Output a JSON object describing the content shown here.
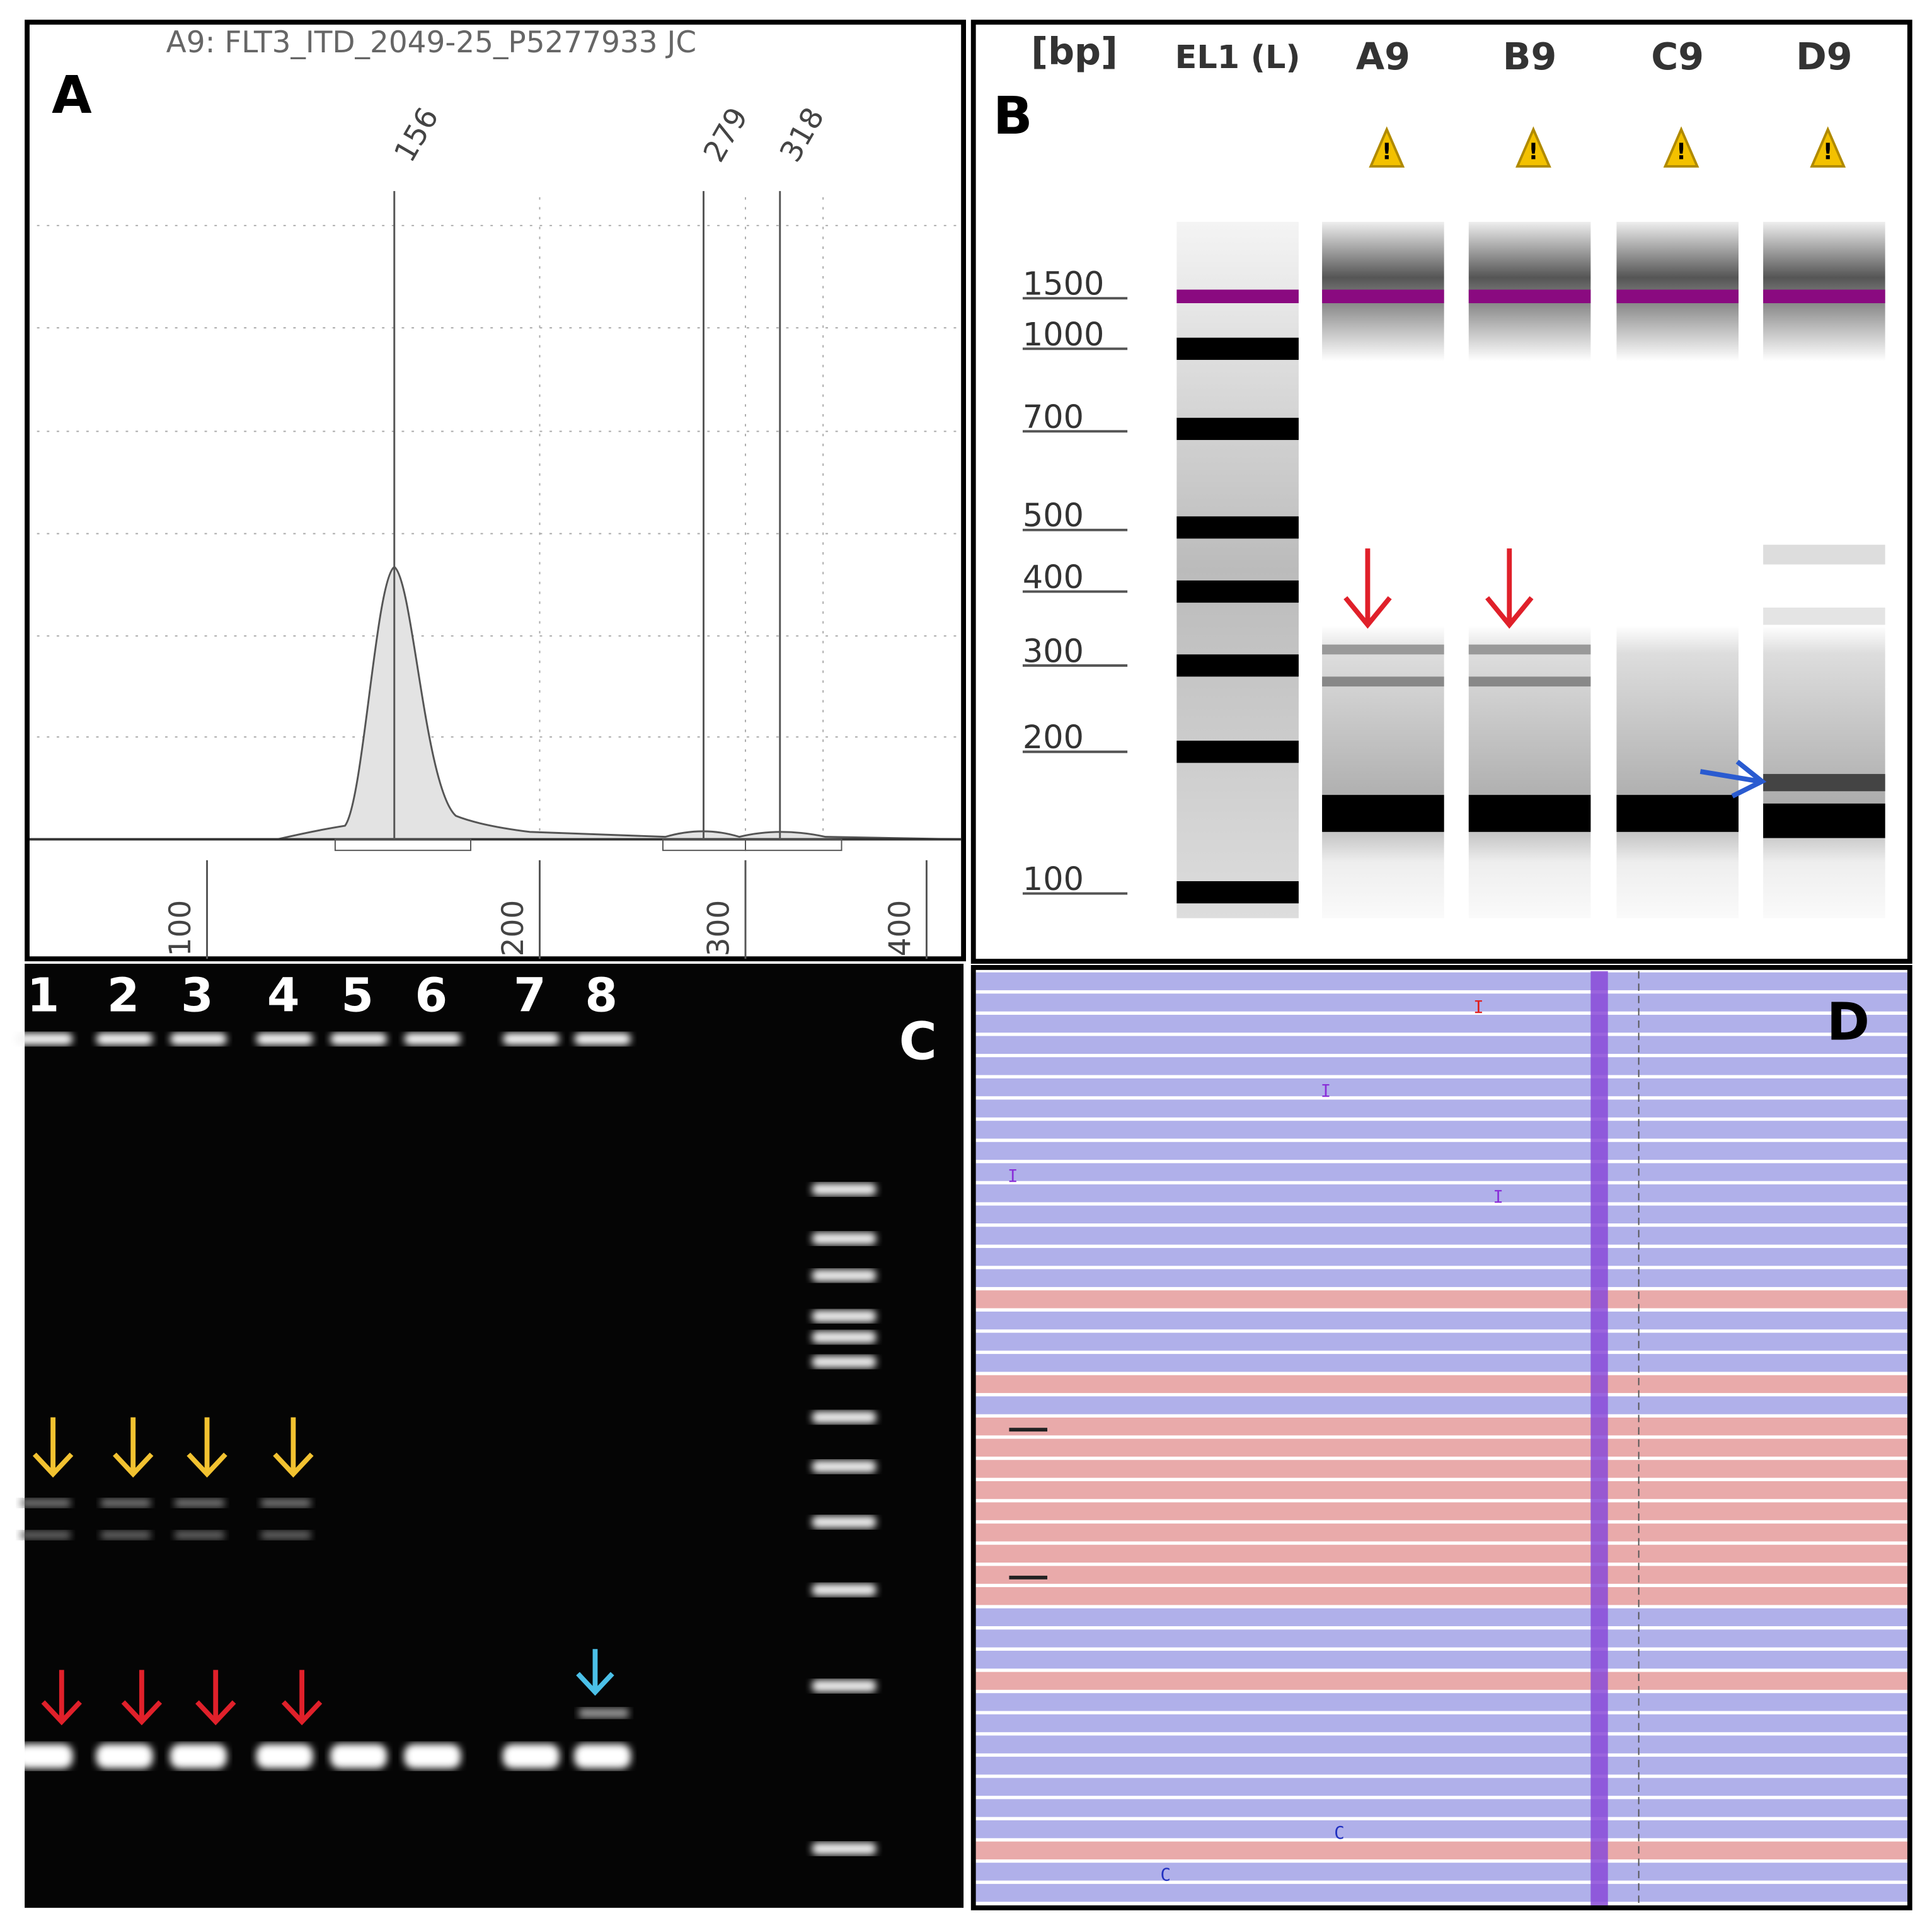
{
  "panel_a": {
    "label": "A",
    "title": "A9: FLT3_ITD_2049-25_P5277933 JC",
    "peaks": [
      156,
      279,
      318
    ],
    "x_ticks": [
      100,
      200,
      300,
      400
    ]
  },
  "panel_b": {
    "label": "B",
    "unit": "[bp]",
    "lanes": [
      "EL1 (L)",
      "A9",
      "B9",
      "C9",
      "D9"
    ],
    "sizes": [
      1500,
      1000,
      700,
      500,
      400,
      300,
      200,
      100
    ]
  },
  "panel_c": {
    "label": "C",
    "lanes": [
      "1",
      "2",
      "3",
      "4",
      "5",
      "6",
      "7",
      "8"
    ]
  },
  "panel_d": {
    "label": "D",
    "marks": [
      "I",
      "I",
      "I",
      "I",
      "C",
      "C"
    ]
  }
}
